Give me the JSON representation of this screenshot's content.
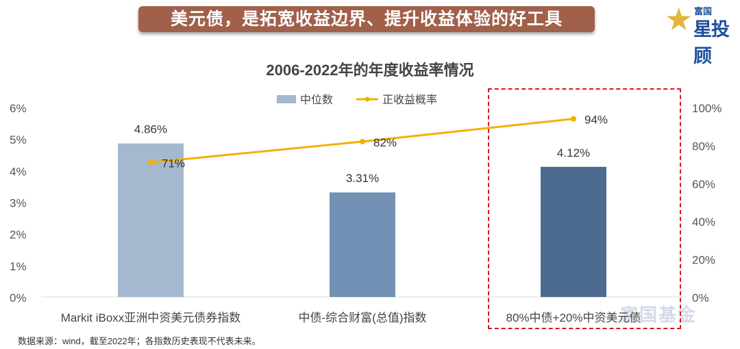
{
  "banner": {
    "title": "美元债，是拓宽收益边界、提升收益体验的好工具"
  },
  "logo": {
    "small": "富国",
    "large": "星投顾"
  },
  "watermark": "富国基金",
  "source_note": "数据来源：wind，截至2022年；各指数历史表现不代表未来。",
  "colors": {
    "bar1": "#a4b8cf",
    "bar2": "#7391b4",
    "bar3": "#4d6b8f",
    "line": "#f5b000",
    "highlight": "#d9161c"
  },
  "chart_data": {
    "type": "bar+line",
    "title": "2006-2022年的年度收益率情况",
    "categories": [
      "Markit iBoxx亚洲中资美元债券指数",
      "中债-综合财富(总值)指数",
      "80%中债+20%中资美元债"
    ],
    "series": [
      {
        "name": "中位数",
        "type": "bar",
        "axis": "left",
        "values": [
          4.86,
          3.31,
          4.12
        ],
        "labels": [
          "4.86%",
          "3.31%",
          "4.12%"
        ]
      },
      {
        "name": "正收益概率",
        "type": "line",
        "axis": "right",
        "values": [
          71,
          82,
          94
        ],
        "labels": [
          "71%",
          "82%",
          "94%"
        ]
      }
    ],
    "left_axis": {
      "ylim": [
        0,
        6
      ],
      "ticks": [
        "0%",
        "1%",
        "2%",
        "3%",
        "4%",
        "5%",
        "6%"
      ]
    },
    "right_axis": {
      "ylim": [
        0,
        100
      ],
      "ticks": [
        "0%",
        "20%",
        "40%",
        "60%",
        "80%",
        "100%"
      ]
    },
    "legend": "top-center",
    "grid": false,
    "highlight_category": 2
  }
}
